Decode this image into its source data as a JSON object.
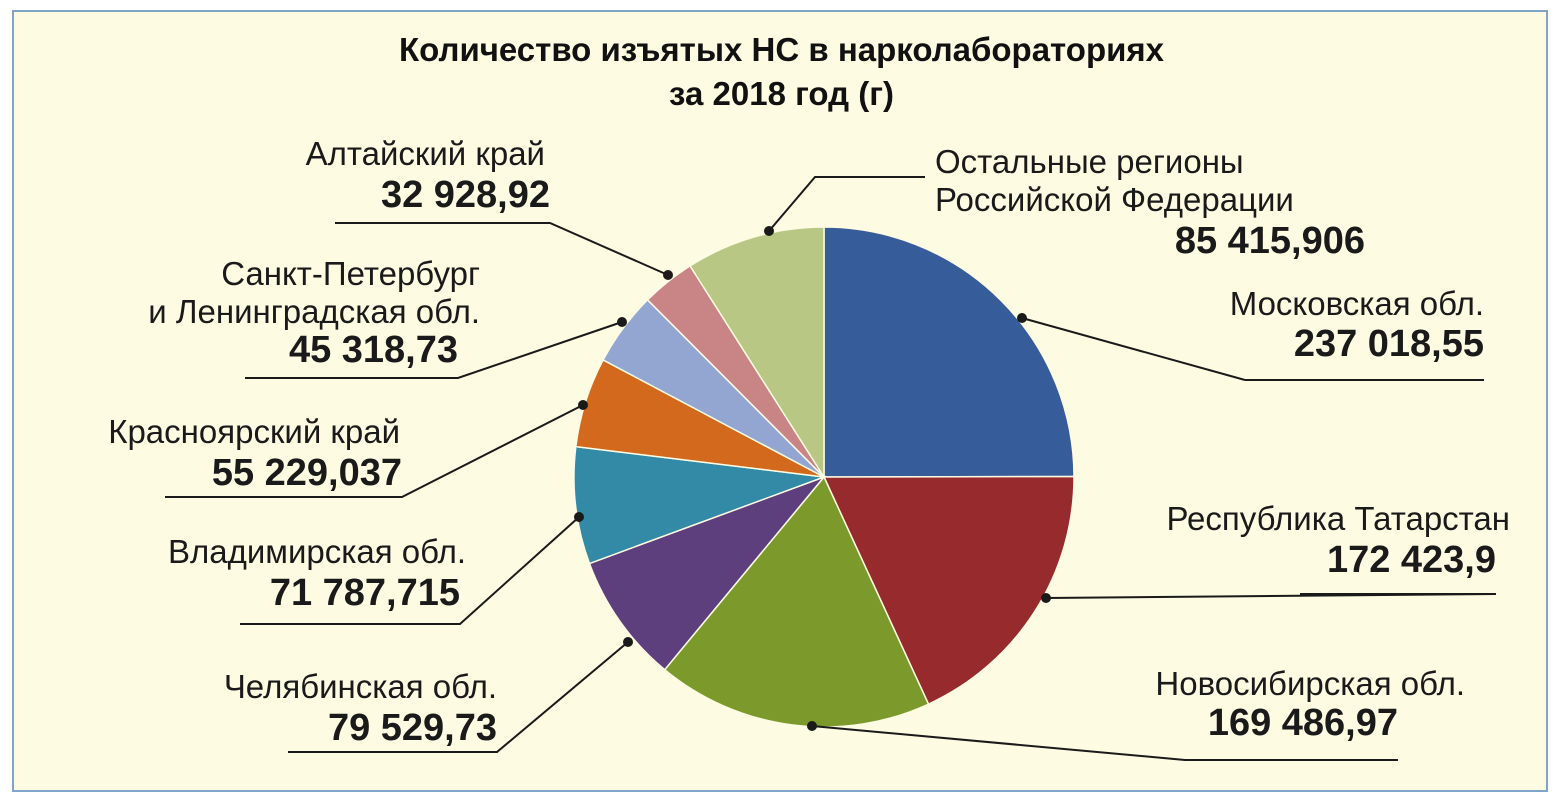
{
  "chart_data": {
    "type": "pie",
    "title_line1": "Количество изъятых НС в нарколабораториях",
    "title_line2": "за 2018 год (г)",
    "slices": [
      {
        "label": "Московская обл.",
        "label_lines": [
          "Московская обл."
        ],
        "value_text": "237 018,55",
        "value": 237018.55,
        "color": "#365c9a"
      },
      {
        "label": "Республика Татарстан",
        "label_lines": [
          "Республика Татарстан"
        ],
        "value_text": "172 423,9",
        "value": 172423.9,
        "color": "#962a2d"
      },
      {
        "label": "Новосибирская обл.",
        "label_lines": [
          "Новосибирская обл."
        ],
        "value_text": "169 486,97",
        "value": 169486.97,
        "color": "#7c9a2b"
      },
      {
        "label": "Челябинская обл.",
        "label_lines": [
          "Челябинская обл."
        ],
        "value_text": "79 529,73",
        "value": 79529.73,
        "color": "#5e3f7d"
      },
      {
        "label": "Владимирская обл.",
        "label_lines": [
          "Владимирская обл."
        ],
        "value_text": "71 787,715",
        "value": 71787.715,
        "color": "#338aa6"
      },
      {
        "label": "Красноярский край",
        "label_lines": [
          "Красноярский край"
        ],
        "value_text": "55 229,037",
        "value": 55229.037,
        "color": "#d2691d"
      },
      {
        "label": "Санкт-Петербург и Ленинградская обл.",
        "label_lines": [
          "Санкт-Петербург",
          "и Ленинградская обл."
        ],
        "value_text": "45 318,73",
        "value": 45318.73,
        "color": "#93a6d2"
      },
      {
        "label": "Алтайский край",
        "label_lines": [
          "Алтайский край"
        ],
        "value_text": "32 928,92",
        "value": 32928.92,
        "color": "#c98585"
      },
      {
        "label": "Остальные регионы Российской Федерации",
        "label_lines": [
          "Остальные регионы",
          "Российской Федерации"
        ],
        "value_text": "85 415,906",
        "value": 85415.906,
        "color": "#b8c784"
      }
    ]
  }
}
